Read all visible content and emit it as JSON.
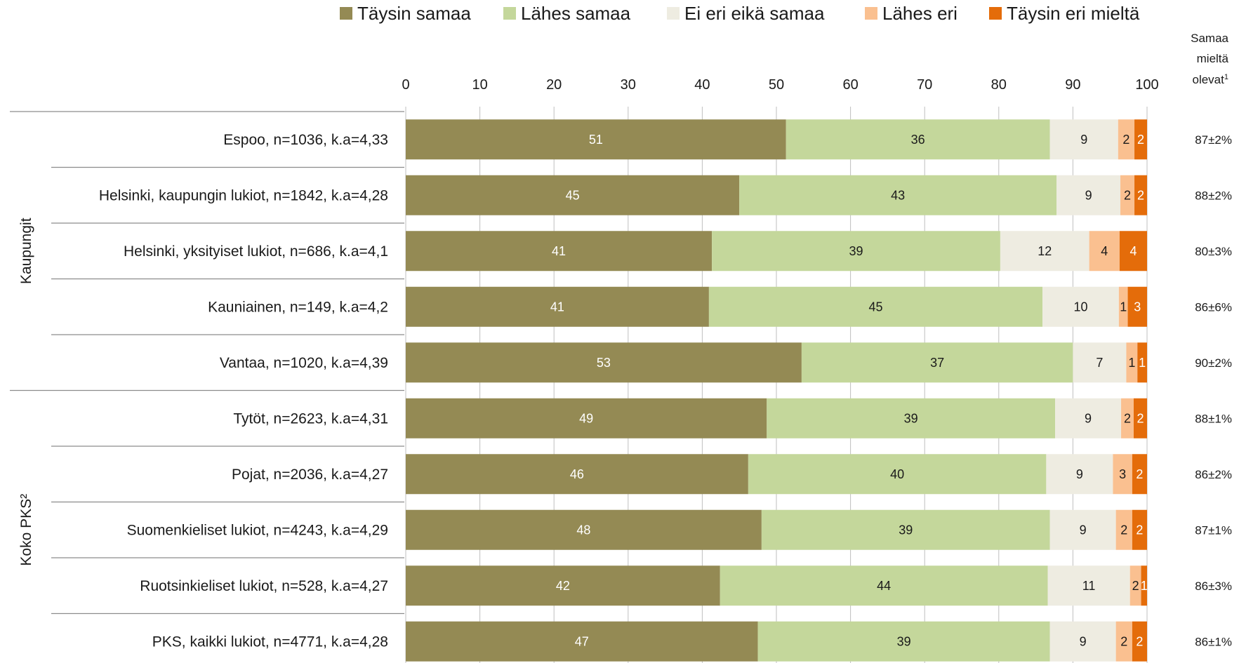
{
  "chart_data": {
    "type": "bar",
    "orientation": "horizontal",
    "stacked": true,
    "xlim": [
      0,
      100
    ],
    "x_ticks": [
      "0",
      "10",
      "20",
      "30",
      "40",
      "50",
      "60",
      "70",
      "80",
      "90",
      "100"
    ],
    "grid": true,
    "legend_position": "top",
    "categories": [
      "Espoo, n=1036, k.a=4,33",
      "Helsinki, kaupungin lukiot, n=1842, k.a=4,28",
      "Helsinki, yksityiset lukiot, n=686, k.a=4,1",
      "Kauniainen, n=149, k.a=4,2",
      "Vantaa, n=1020, k.a=4,39",
      "Tytöt, n=2623, k.a=4,31",
      "Pojat, n=2036, k.a=4,27",
      "Suomenkieliset lukiot, n=4243, k.a=4,29",
      "Ruotsinkieliset lukiot, n=528, k.a=4,27",
      "PKS, kaikki lukiot, n=4771, k.a=4,28"
    ],
    "groups": [
      {
        "label": "Kaupungit",
        "start": 0,
        "end": 4
      },
      {
        "label": "Koko PKS²",
        "start": 5,
        "end": 9
      }
    ],
    "series": [
      {
        "name": "Täysin samaa",
        "color": "#948a54",
        "label_color": "#ffffff",
        "values": [
          51.3,
          45,
          41.3,
          40.9,
          53.4,
          48.7,
          46.2,
          48,
          42.4,
          47.5
        ],
        "labels": [
          "51",
          "45",
          "41",
          "41",
          "53",
          "49",
          "46",
          "48",
          "42",
          "47"
        ]
      },
      {
        "name": "Lähes samaa",
        "color": "#c4d79b",
        "label_color": "#1a1a1a",
        "values": [
          35.6,
          42.8,
          38.9,
          45,
          36.6,
          38.9,
          40.2,
          38.9,
          44.2,
          39.4
        ],
        "labels": [
          "36",
          "43",
          "39",
          "45",
          "37",
          "39",
          "40",
          "39",
          "44",
          "39"
        ]
      },
      {
        "name": "Ei eri eikä samaa",
        "color": "#eeece1",
        "label_color": "#1a1a1a",
        "values": [
          9.2,
          8.6,
          12,
          10.3,
          7.2,
          8.9,
          9,
          8.9,
          11.1,
          8.9
        ],
        "labels": [
          "9",
          "9",
          "12",
          "10",
          "7",
          "9",
          "9",
          "9",
          "11",
          "9"
        ]
      },
      {
        "name": "Lähes eri",
        "color": "#fac090",
        "label_color": "#1a1a1a",
        "values": [
          2.2,
          1.9,
          4.1,
          1.2,
          1.5,
          1.7,
          2.6,
          2.2,
          1.5,
          2.2
        ],
        "labels": [
          "2",
          "2",
          "4",
          "1",
          "1",
          "2",
          "3",
          "2",
          "2",
          "2"
        ]
      },
      {
        "name": "Täysin eri mieltä",
        "color": "#e46c0a",
        "label_color": "#ffffff",
        "values": [
          1.7,
          1.7,
          3.7,
          2.6,
          1.3,
          1.8,
          2,
          2,
          0.8,
          2
        ],
        "labels": [
          "2",
          "2",
          "4",
          "3",
          "1",
          "2",
          "2",
          "2",
          "1",
          "2"
        ]
      }
    ],
    "right_column": {
      "header": [
        "Samaa",
        "mieltä",
        "olevat"
      ],
      "header_sup": "1",
      "values": [
        "87±2%",
        "88±2%",
        "80±3%",
        "86±6%",
        "90±2%",
        "88±1%",
        "86±2%",
        "87±1%",
        "86±3%",
        "86±1%"
      ]
    }
  }
}
